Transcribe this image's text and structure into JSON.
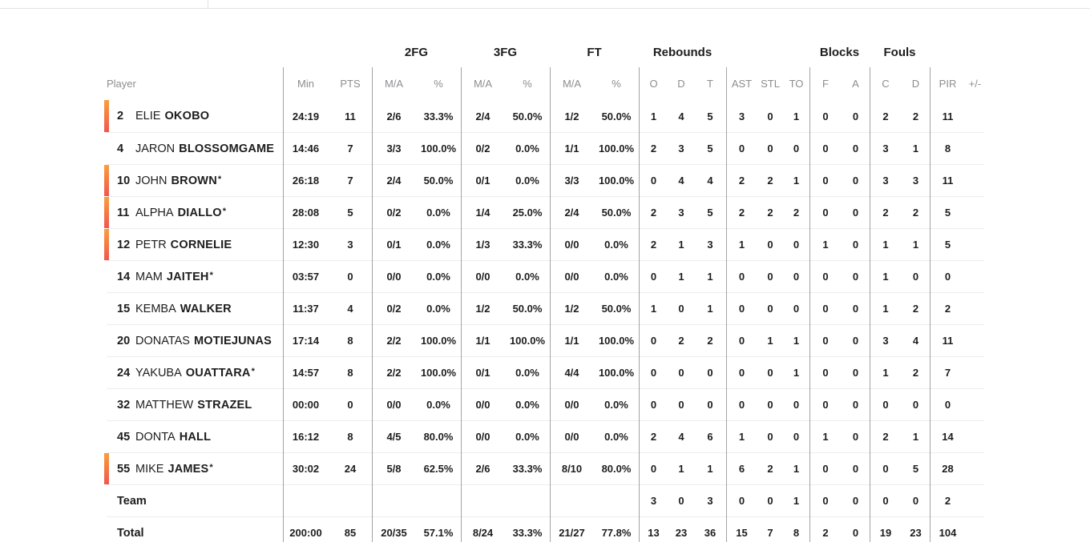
{
  "table": {
    "group_headers": {
      "fg2": "2FG",
      "fg3": "3FG",
      "ft": "FT",
      "rebounds": "Rebounds",
      "blocks": "Blocks",
      "fouls": "Fouls"
    },
    "columns": {
      "player": "Player",
      "min": "Min",
      "pts": "PTS",
      "ma": "M/A",
      "pct": "%",
      "reb_o": "O",
      "reb_d": "D",
      "reb_t": "T",
      "ast": "AST",
      "stl": "STL",
      "to": "TO",
      "blk_f": "F",
      "blk_a": "A",
      "foul_c": "C",
      "foul_d": "D",
      "pir": "PIR",
      "plus_minus": "+/-"
    },
    "rows": [
      {
        "type": "player",
        "on_court": true,
        "starter": false,
        "number": "2",
        "first": "ELIE",
        "last": "OKOBO",
        "stats": {
          "min": "24:19",
          "pts": "11",
          "fg2_ma": "2/6",
          "fg2_pct": "33.3%",
          "fg3_ma": "2/4",
          "fg3_pct": "50.0%",
          "ft_ma": "1/2",
          "ft_pct": "50.0%",
          "reb_o": "1",
          "reb_d": "4",
          "reb_t": "5",
          "ast": "3",
          "stl": "0",
          "to": "1",
          "blk_f": "0",
          "blk_a": "0",
          "foul_c": "2",
          "foul_d": "2",
          "pir": "11",
          "pm": ""
        }
      },
      {
        "type": "player",
        "on_court": false,
        "starter": false,
        "number": "4",
        "first": "JARON",
        "last": "BLOSSOMGAME",
        "stats": {
          "min": "14:46",
          "pts": "7",
          "fg2_ma": "3/3",
          "fg2_pct": "100.0%",
          "fg3_ma": "0/2",
          "fg3_pct": "0.0%",
          "ft_ma": "1/1",
          "ft_pct": "100.0%",
          "reb_o": "2",
          "reb_d": "3",
          "reb_t": "5",
          "ast": "0",
          "stl": "0",
          "to": "0",
          "blk_f": "0",
          "blk_a": "0",
          "foul_c": "3",
          "foul_d": "1",
          "pir": "8",
          "pm": ""
        }
      },
      {
        "type": "player",
        "on_court": true,
        "starter": true,
        "number": "10",
        "first": "JOHN",
        "last": "BROWN",
        "stats": {
          "min": "26:18",
          "pts": "7",
          "fg2_ma": "2/4",
          "fg2_pct": "50.0%",
          "fg3_ma": "0/1",
          "fg3_pct": "0.0%",
          "ft_ma": "3/3",
          "ft_pct": "100.0%",
          "reb_o": "0",
          "reb_d": "4",
          "reb_t": "4",
          "ast": "2",
          "stl": "2",
          "to": "1",
          "blk_f": "0",
          "blk_a": "0",
          "foul_c": "3",
          "foul_d": "3",
          "pir": "11",
          "pm": ""
        }
      },
      {
        "type": "player",
        "on_court": true,
        "starter": true,
        "number": "11",
        "first": "ALPHA",
        "last": "DIALLO",
        "stats": {
          "min": "28:08",
          "pts": "5",
          "fg2_ma": "0/2",
          "fg2_pct": "0.0%",
          "fg3_ma": "1/4",
          "fg3_pct": "25.0%",
          "ft_ma": "2/4",
          "ft_pct": "50.0%",
          "reb_o": "2",
          "reb_d": "3",
          "reb_t": "5",
          "ast": "2",
          "stl": "2",
          "to": "2",
          "blk_f": "0",
          "blk_a": "0",
          "foul_c": "2",
          "foul_d": "2",
          "pir": "5",
          "pm": ""
        }
      },
      {
        "type": "player",
        "on_court": true,
        "starter": false,
        "number": "12",
        "first": "PETR",
        "last": "CORNELIE",
        "stats": {
          "min": "12:30",
          "pts": "3",
          "fg2_ma": "0/1",
          "fg2_pct": "0.0%",
          "fg3_ma": "1/3",
          "fg3_pct": "33.3%",
          "ft_ma": "0/0",
          "ft_pct": "0.0%",
          "reb_o": "2",
          "reb_d": "1",
          "reb_t": "3",
          "ast": "1",
          "stl": "0",
          "to": "0",
          "blk_f": "1",
          "blk_a": "0",
          "foul_c": "1",
          "foul_d": "1",
          "pir": "5",
          "pm": ""
        }
      },
      {
        "type": "player",
        "on_court": false,
        "starter": true,
        "number": "14",
        "first": "MAM",
        "last": "JAITEH",
        "stats": {
          "min": "03:57",
          "pts": "0",
          "fg2_ma": "0/0",
          "fg2_pct": "0.0%",
          "fg3_ma": "0/0",
          "fg3_pct": "0.0%",
          "ft_ma": "0/0",
          "ft_pct": "0.0%",
          "reb_o": "0",
          "reb_d": "1",
          "reb_t": "1",
          "ast": "0",
          "stl": "0",
          "to": "0",
          "blk_f": "0",
          "blk_a": "0",
          "foul_c": "1",
          "foul_d": "0",
          "pir": "0",
          "pm": ""
        }
      },
      {
        "type": "player",
        "on_court": false,
        "starter": false,
        "number": "15",
        "first": "KEMBA",
        "last": "WALKER",
        "stats": {
          "min": "11:37",
          "pts": "4",
          "fg2_ma": "0/2",
          "fg2_pct": "0.0%",
          "fg3_ma": "1/2",
          "fg3_pct": "50.0%",
          "ft_ma": "1/2",
          "ft_pct": "50.0%",
          "reb_o": "1",
          "reb_d": "0",
          "reb_t": "1",
          "ast": "0",
          "stl": "0",
          "to": "0",
          "blk_f": "0",
          "blk_a": "0",
          "foul_c": "1",
          "foul_d": "2",
          "pir": "2",
          "pm": ""
        }
      },
      {
        "type": "player",
        "on_court": false,
        "starter": false,
        "number": "20",
        "first": "DONATAS",
        "last": "MOTIEJUNAS",
        "stats": {
          "min": "17:14",
          "pts": "8",
          "fg2_ma": "2/2",
          "fg2_pct": "100.0%",
          "fg3_ma": "1/1",
          "fg3_pct": "100.0%",
          "ft_ma": "1/1",
          "ft_pct": "100.0%",
          "reb_o": "0",
          "reb_d": "2",
          "reb_t": "2",
          "ast": "0",
          "stl": "1",
          "to": "1",
          "blk_f": "0",
          "blk_a": "0",
          "foul_c": "3",
          "foul_d": "4",
          "pir": "11",
          "pm": ""
        }
      },
      {
        "type": "player",
        "on_court": false,
        "starter": true,
        "number": "24",
        "first": "YAKUBA",
        "last": "OUATTARA",
        "stats": {
          "min": "14:57",
          "pts": "8",
          "fg2_ma": "2/2",
          "fg2_pct": "100.0%",
          "fg3_ma": "0/1",
          "fg3_pct": "0.0%",
          "ft_ma": "4/4",
          "ft_pct": "100.0%",
          "reb_o": "0",
          "reb_d": "0",
          "reb_t": "0",
          "ast": "0",
          "stl": "0",
          "to": "1",
          "blk_f": "0",
          "blk_a": "0",
          "foul_c": "1",
          "foul_d": "2",
          "pir": "7",
          "pm": ""
        }
      },
      {
        "type": "player",
        "on_court": false,
        "starter": false,
        "number": "32",
        "first": "MATTHEW",
        "last": "STRAZEL",
        "stats": {
          "min": "00:00",
          "pts": "0",
          "fg2_ma": "0/0",
          "fg2_pct": "0.0%",
          "fg3_ma": "0/0",
          "fg3_pct": "0.0%",
          "ft_ma": "0/0",
          "ft_pct": "0.0%",
          "reb_o": "0",
          "reb_d": "0",
          "reb_t": "0",
          "ast": "0",
          "stl": "0",
          "to": "0",
          "blk_f": "0",
          "blk_a": "0",
          "foul_c": "0",
          "foul_d": "0",
          "pir": "0",
          "pm": ""
        }
      },
      {
        "type": "player",
        "on_court": false,
        "starter": false,
        "number": "45",
        "first": "DONTA",
        "last": "HALL",
        "stats": {
          "min": "16:12",
          "pts": "8",
          "fg2_ma": "4/5",
          "fg2_pct": "80.0%",
          "fg3_ma": "0/0",
          "fg3_pct": "0.0%",
          "ft_ma": "0/0",
          "ft_pct": "0.0%",
          "reb_o": "2",
          "reb_d": "4",
          "reb_t": "6",
          "ast": "1",
          "stl": "0",
          "to": "0",
          "blk_f": "1",
          "blk_a": "0",
          "foul_c": "2",
          "foul_d": "1",
          "pir": "14",
          "pm": ""
        }
      },
      {
        "type": "player",
        "on_court": true,
        "starter": true,
        "number": "55",
        "first": "MIKE",
        "last": "JAMES",
        "stats": {
          "min": "30:02",
          "pts": "24",
          "fg2_ma": "5/8",
          "fg2_pct": "62.5%",
          "fg3_ma": "2/6",
          "fg3_pct": "33.3%",
          "ft_ma": "8/10",
          "ft_pct": "80.0%",
          "reb_o": "0",
          "reb_d": "1",
          "reb_t": "1",
          "ast": "6",
          "stl": "2",
          "to": "1",
          "blk_f": "0",
          "blk_a": "0",
          "foul_c": "0",
          "foul_d": "5",
          "pir": "28",
          "pm": ""
        }
      },
      {
        "type": "team",
        "on_court": false,
        "starter": false,
        "label": "Team",
        "stats": {
          "min": "",
          "pts": "",
          "fg2_ma": "",
          "fg2_pct": "",
          "fg3_ma": "",
          "fg3_pct": "",
          "ft_ma": "",
          "ft_pct": "",
          "reb_o": "3",
          "reb_d": "0",
          "reb_t": "3",
          "ast": "0",
          "stl": "0",
          "to": "1",
          "blk_f": "0",
          "blk_a": "0",
          "foul_c": "0",
          "foul_d": "0",
          "pir": "2",
          "pm": ""
        }
      },
      {
        "type": "total",
        "on_court": false,
        "starter": false,
        "label": "Total",
        "stats": {
          "min": "200:00",
          "pts": "85",
          "fg2_ma": "20/35",
          "fg2_pct": "57.1%",
          "fg3_ma": "8/24",
          "fg3_pct": "33.3%",
          "ft_ma": "21/27",
          "ft_pct": "77.8%",
          "reb_o": "13",
          "reb_d": "23",
          "reb_t": "36",
          "ast": "15",
          "stl": "7",
          "to": "8",
          "blk_f": "2",
          "blk_a": "0",
          "foul_c": "19",
          "foul_d": "23",
          "pir": "104",
          "pm": ""
        }
      }
    ]
  },
  "legend": {
    "starter_mark": "*"
  },
  "colors": {
    "on_court_bar_top": "#f89f3d",
    "on_court_bar_bottom": "#f1564e",
    "text_dark": "#1d1d1f",
    "text_muted": "#8d8d92",
    "divider_vertical": "#a3a3a7",
    "divider_horizontal": "#ededef",
    "top_border": "#e3e3e6"
  }
}
